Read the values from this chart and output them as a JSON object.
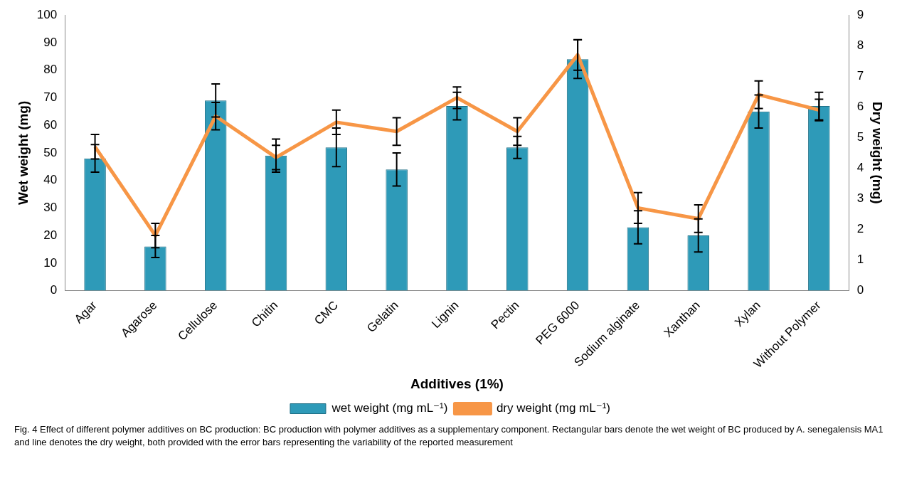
{
  "chart_data": {
    "type": "bar",
    "xlabel": "Additives (1%)",
    "ylabel": "Wet weight (mg)",
    "y2label": "Dry weight (mg)",
    "categories": [
      "Agar",
      "Agarose",
      "Cellulose",
      "Chitin",
      "CMC",
      "Gelatin",
      "Lignin",
      "Pectin",
      "PEG 6000",
      "Sodium alginate",
      "Xanthan",
      "Xylan",
      "Without Polymer"
    ],
    "series": [
      {
        "name": "wet weight (mg mL⁻¹)",
        "color": "#2e9ab8",
        "values": [
          48,
          16,
          69,
          49,
          52,
          44,
          67,
          52,
          84,
          23,
          20,
          65,
          67
        ],
        "errors": [
          5,
          4,
          6,
          6,
          7,
          6,
          5,
          4,
          7,
          6,
          6,
          6,
          5
        ]
      },
      {
        "name": "dry weight (mg mL⁻¹)",
        "type": "line",
        "axis": "y2",
        "color": "#f79646",
        "values": [
          4.7,
          1.8,
          5.7,
          4.35,
          5.5,
          5.2,
          6.3,
          5.2,
          7.7,
          2.7,
          2.35,
          6.4,
          5.9
        ],
        "errors": [
          0.4,
          0.4,
          0.45,
          0.4,
          0.4,
          0.45,
          0.35,
          0.45,
          0.5,
          0.5,
          0.45,
          0.45,
          0.35
        ]
      }
    ],
    "ylim": [
      0,
      100
    ],
    "yticks": [
      0,
      10,
      20,
      30,
      40,
      50,
      60,
      70,
      80,
      90,
      100
    ],
    "y2lim": [
      0,
      9
    ],
    "y2ticks": [
      0,
      1,
      2,
      3,
      4,
      5,
      6,
      7,
      8,
      9
    ],
    "grid": false,
    "legend": "bottom",
    "marker": "none",
    "line_style": "solid",
    "annotations": [
      "Fig. 4 Effect of different polymer additives on BC production: BC production with polymer additives as a supplementary component. Rectangular bars denote the wet weight of BC produced by A. senegalensis MA1 and line denotes the dry weight, both provided with the error bars representing the variability of the reported measurement"
    ]
  }
}
